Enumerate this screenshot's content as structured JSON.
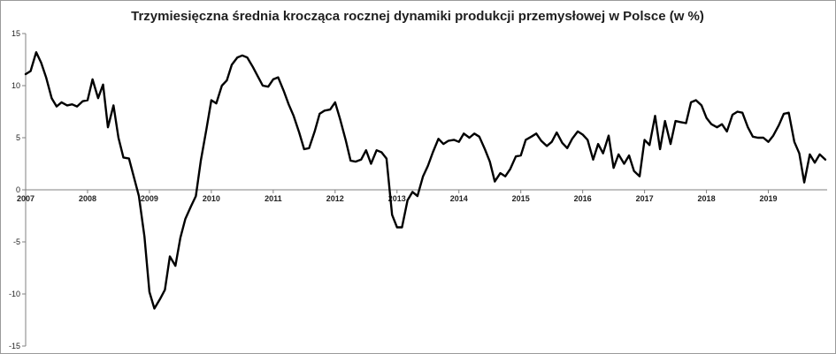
{
  "chart_data": {
    "type": "line",
    "title": "Trzymiesięczna średnia krocząca rocznej dynamiki produkcji przemysłowej w Polsce (w %)",
    "xlabel": "",
    "ylabel": "",
    "ylim": [
      -15,
      15
    ],
    "xlim": [
      2007.0,
      2019.95
    ],
    "yticks": [
      "15",
      "10",
      "5",
      "0",
      "-5",
      "-10",
      "-15"
    ],
    "xticks": [
      "2007",
      "2008",
      "2009",
      "2010",
      "2011",
      "2012",
      "2013",
      "2014",
      "2015",
      "2016",
      "2017",
      "2018",
      "2019"
    ],
    "grid": false,
    "legend": "none",
    "series_color": "#000000",
    "series": [
      {
        "x": [
          2007.0,
          2007.08,
          2007.17,
          2007.25,
          2007.33,
          2007.42,
          2007.5,
          2007.58,
          2007.67,
          2007.75,
          2007.83,
          2007.92,
          2008.0,
          2008.08,
          2008.17,
          2008.25,
          2008.33,
          2008.42,
          2008.5,
          2008.58,
          2008.67,
          2008.75,
          2008.83,
          2008.92,
          2009.0,
          2009.08,
          2009.17,
          2009.25,
          2009.33,
          2009.42,
          2009.5,
          2009.58,
          2009.67,
          2009.75,
          2009.83,
          2009.92,
          2010.0,
          2010.08,
          2010.17,
          2010.25,
          2010.33,
          2010.42,
          2010.5,
          2010.58,
          2010.67,
          2010.75,
          2010.83,
          2010.92,
          2011.0,
          2011.08,
          2011.17,
          2011.25,
          2011.33,
          2011.42,
          2011.5,
          2011.58,
          2011.67,
          2011.75,
          2011.83,
          2011.92,
          2012.0,
          2012.08,
          2012.17,
          2012.25,
          2012.33,
          2012.42,
          2012.5,
          2012.58,
          2012.67,
          2012.75,
          2012.83,
          2012.92,
          2013.0,
          2013.08,
          2013.17,
          2013.25,
          2013.33,
          2013.42,
          2013.5,
          2013.58,
          2013.67,
          2013.75,
          2013.83,
          2013.92,
          2014.0,
          2014.08,
          2014.17,
          2014.25,
          2014.33,
          2014.42,
          2014.5,
          2014.58,
          2014.67,
          2014.75,
          2014.83,
          2014.92,
          2015.0,
          2015.08,
          2015.17,
          2015.25,
          2015.33,
          2015.42,
          2015.5,
          2015.58,
          2015.67,
          2015.75,
          2015.83,
          2015.92,
          2016.0,
          2016.08,
          2016.17,
          2016.25,
          2016.33,
          2016.42,
          2016.5,
          2016.58,
          2016.67,
          2016.75,
          2016.83,
          2016.92,
          2017.0,
          2017.08,
          2017.17,
          2017.25,
          2017.33,
          2017.42,
          2017.5,
          2017.58,
          2017.67,
          2017.75,
          2017.83,
          2017.92,
          2018.0,
          2018.08,
          2018.17,
          2018.25,
          2018.33,
          2018.42,
          2018.5,
          2018.58,
          2018.67,
          2018.75,
          2018.83,
          2018.92,
          2019.0,
          2019.08,
          2019.17,
          2019.25,
          2019.33,
          2019.42,
          2019.5,
          2019.58,
          2019.67,
          2019.75,
          2019.83,
          2019.92
        ],
        "values": [
          11.1,
          11.4,
          13.2,
          12.2,
          10.8,
          8.8,
          8.0,
          8.4,
          8.1,
          8.2,
          8.0,
          8.5,
          8.6,
          10.6,
          8.8,
          10.1,
          6.0,
          8.1,
          5.0,
          3.1,
          3.0,
          1.2,
          -0.6,
          -4.5,
          -9.8,
          -11.4,
          -10.5,
          -9.6,
          -6.4,
          -7.3,
          -4.6,
          -2.8,
          -1.6,
          -0.6,
          2.8,
          5.8,
          8.6,
          8.3,
          10.0,
          10.5,
          12.0,
          12.7,
          12.9,
          12.7,
          11.8,
          10.9,
          10.0,
          9.9,
          10.6,
          10.8,
          9.5,
          8.2,
          7.1,
          5.5,
          3.9,
          4.0,
          5.6,
          7.3,
          7.6,
          7.7,
          8.4,
          6.8,
          4.8,
          2.8,
          2.7,
          2.9,
          3.8,
          2.5,
          3.8,
          3.6,
          3.0,
          -2.4,
          -3.6,
          -3.6,
          -1.0,
          -0.2,
          -0.6,
          1.3,
          2.3,
          3.6,
          4.9,
          4.4,
          4.7,
          4.8,
          4.6,
          5.4,
          5.0,
          5.4,
          5.1,
          3.9,
          2.7,
          0.8,
          1.6,
          1.3,
          2.0,
          3.2,
          3.3,
          4.8,
          5.1,
          5.4,
          4.7,
          4.2,
          4.6,
          5.5,
          4.5,
          4.0,
          4.9,
          5.6,
          5.3,
          4.8,
          2.9,
          4.4,
          3.5,
          5.2,
          2.1,
          3.4,
          2.5,
          3.3,
          1.8,
          1.3,
          4.8,
          4.3,
          7.1,
          3.9,
          6.6,
          4.4,
          6.6,
          6.5,
          6.4,
          8.4,
          8.6,
          8.1,
          6.9,
          6.3,
          6.0,
          6.3,
          5.6,
          7.2,
          7.5,
          7.4,
          6.0,
          5.1,
          5.0,
          5.0,
          4.6,
          5.2,
          6.2,
          7.3,
          7.4,
          4.6,
          3.5,
          0.7,
          3.4,
          2.6,
          3.4,
          2.9
        ]
      }
    ]
  }
}
